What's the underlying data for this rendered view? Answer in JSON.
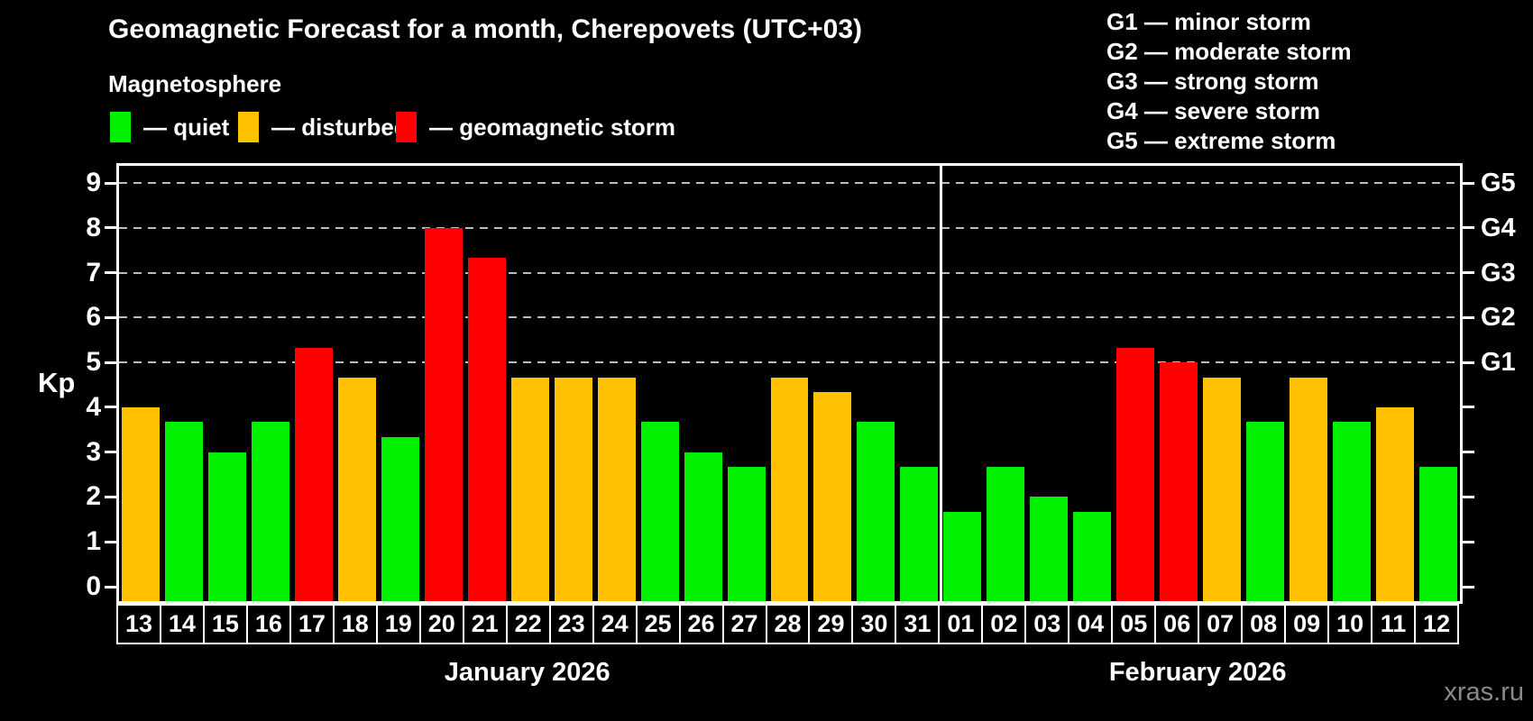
{
  "title": "Geomagnetic Forecast for a month, Cherepovets (UTC+03)",
  "subtitle": "Magnetosphere",
  "legend": {
    "items": [
      {
        "key": "quiet",
        "label": "— quiet",
        "x": 122
      },
      {
        "key": "disturbed",
        "label": "— disturbed",
        "x": 264
      },
      {
        "key": "storm",
        "label": "— geomagnetic storm",
        "x": 439
      }
    ]
  },
  "g_legend": {
    "lines": [
      "G1 — minor storm",
      "G2 — moderate storm",
      "G3 — strong storm",
      "G4 — severe storm",
      "G5 — extreme storm"
    ]
  },
  "colors": {
    "quiet": "#00F000",
    "disturbed": "#FFC000",
    "storm": "#FF0000",
    "grid": "#BBBBBB",
    "frame": "#FFFFFF",
    "watermark": "#8A8A8A"
  },
  "axis": {
    "ylabel": "Kp",
    "yticks": [
      "0",
      "1",
      "2",
      "3",
      "4",
      "5",
      "6",
      "7",
      "8",
      "9"
    ],
    "right_labels": [
      {
        "kp": 5,
        "label": "G1"
      },
      {
        "kp": 6,
        "label": "G2"
      },
      {
        "kp": 7,
        "label": "G3"
      },
      {
        "kp": 8,
        "label": "G4"
      },
      {
        "kp": 9,
        "label": "G5"
      }
    ]
  },
  "months": [
    {
      "label": "January 2026",
      "days_count": 19
    },
    {
      "label": "February 2026",
      "days_count": 12
    }
  ],
  "watermark": "xras.ru",
  "chart_data": {
    "type": "bar",
    "title": "Geomagnetic Forecast for a month, Cherepovets (UTC+03)",
    "ylabel": "Kp",
    "ylim": [
      0,
      9.4
    ],
    "grid_on_kp": [
      5,
      6,
      7,
      8,
      9
    ],
    "legend_position": "top-left",
    "divider_after_index": 18,
    "bars": [
      {
        "month": "January 2026",
        "day": "13",
        "kp": 4.0,
        "status": "disturbed"
      },
      {
        "month": "January 2026",
        "day": "14",
        "kp": 3.67,
        "status": "quiet"
      },
      {
        "month": "January 2026",
        "day": "15",
        "kp": 3.0,
        "status": "quiet"
      },
      {
        "month": "January 2026",
        "day": "16",
        "kp": 3.67,
        "status": "quiet"
      },
      {
        "month": "January 2026",
        "day": "17",
        "kp": 5.33,
        "status": "storm"
      },
      {
        "month": "January 2026",
        "day": "18",
        "kp": 4.67,
        "status": "disturbed"
      },
      {
        "month": "January 2026",
        "day": "19",
        "kp": 3.33,
        "status": "quiet"
      },
      {
        "month": "January 2026",
        "day": "20",
        "kp": 8.0,
        "status": "storm"
      },
      {
        "month": "January 2026",
        "day": "21",
        "kp": 7.33,
        "status": "storm"
      },
      {
        "month": "January 2026",
        "day": "22",
        "kp": 4.67,
        "status": "disturbed"
      },
      {
        "month": "January 2026",
        "day": "23",
        "kp": 4.67,
        "status": "disturbed"
      },
      {
        "month": "January 2026",
        "day": "24",
        "kp": 4.67,
        "status": "disturbed"
      },
      {
        "month": "January 2026",
        "day": "25",
        "kp": 3.67,
        "status": "quiet"
      },
      {
        "month": "January 2026",
        "day": "26",
        "kp": 3.0,
        "status": "quiet"
      },
      {
        "month": "January 2026",
        "day": "27",
        "kp": 2.67,
        "status": "quiet"
      },
      {
        "month": "January 2026",
        "day": "28",
        "kp": 4.67,
        "status": "disturbed"
      },
      {
        "month": "January 2026",
        "day": "29",
        "kp": 4.33,
        "status": "disturbed"
      },
      {
        "month": "January 2026",
        "day": "30",
        "kp": 3.67,
        "status": "quiet"
      },
      {
        "month": "January 2026",
        "day": "31",
        "kp": 2.67,
        "status": "quiet"
      },
      {
        "month": "February 2026",
        "day": "01",
        "kp": 1.67,
        "status": "quiet"
      },
      {
        "month": "February 2026",
        "day": "02",
        "kp": 2.67,
        "status": "quiet"
      },
      {
        "month": "February 2026",
        "day": "03",
        "kp": 2.0,
        "status": "quiet"
      },
      {
        "month": "February 2026",
        "day": "04",
        "kp": 1.67,
        "status": "quiet"
      },
      {
        "month": "February 2026",
        "day": "05",
        "kp": 5.33,
        "status": "storm"
      },
      {
        "month": "February 2026",
        "day": "06",
        "kp": 5.0,
        "status": "storm"
      },
      {
        "month": "February 2026",
        "day": "07",
        "kp": 4.67,
        "status": "disturbed"
      },
      {
        "month": "February 2026",
        "day": "08",
        "kp": 3.67,
        "status": "quiet"
      },
      {
        "month": "February 2026",
        "day": "09",
        "kp": 4.67,
        "status": "disturbed"
      },
      {
        "month": "February 2026",
        "day": "10",
        "kp": 3.67,
        "status": "quiet"
      },
      {
        "month": "February 2026",
        "day": "11",
        "kp": 4.0,
        "status": "disturbed"
      },
      {
        "month": "February 2026",
        "day": "12",
        "kp": 2.67,
        "status": "quiet"
      }
    ]
  }
}
